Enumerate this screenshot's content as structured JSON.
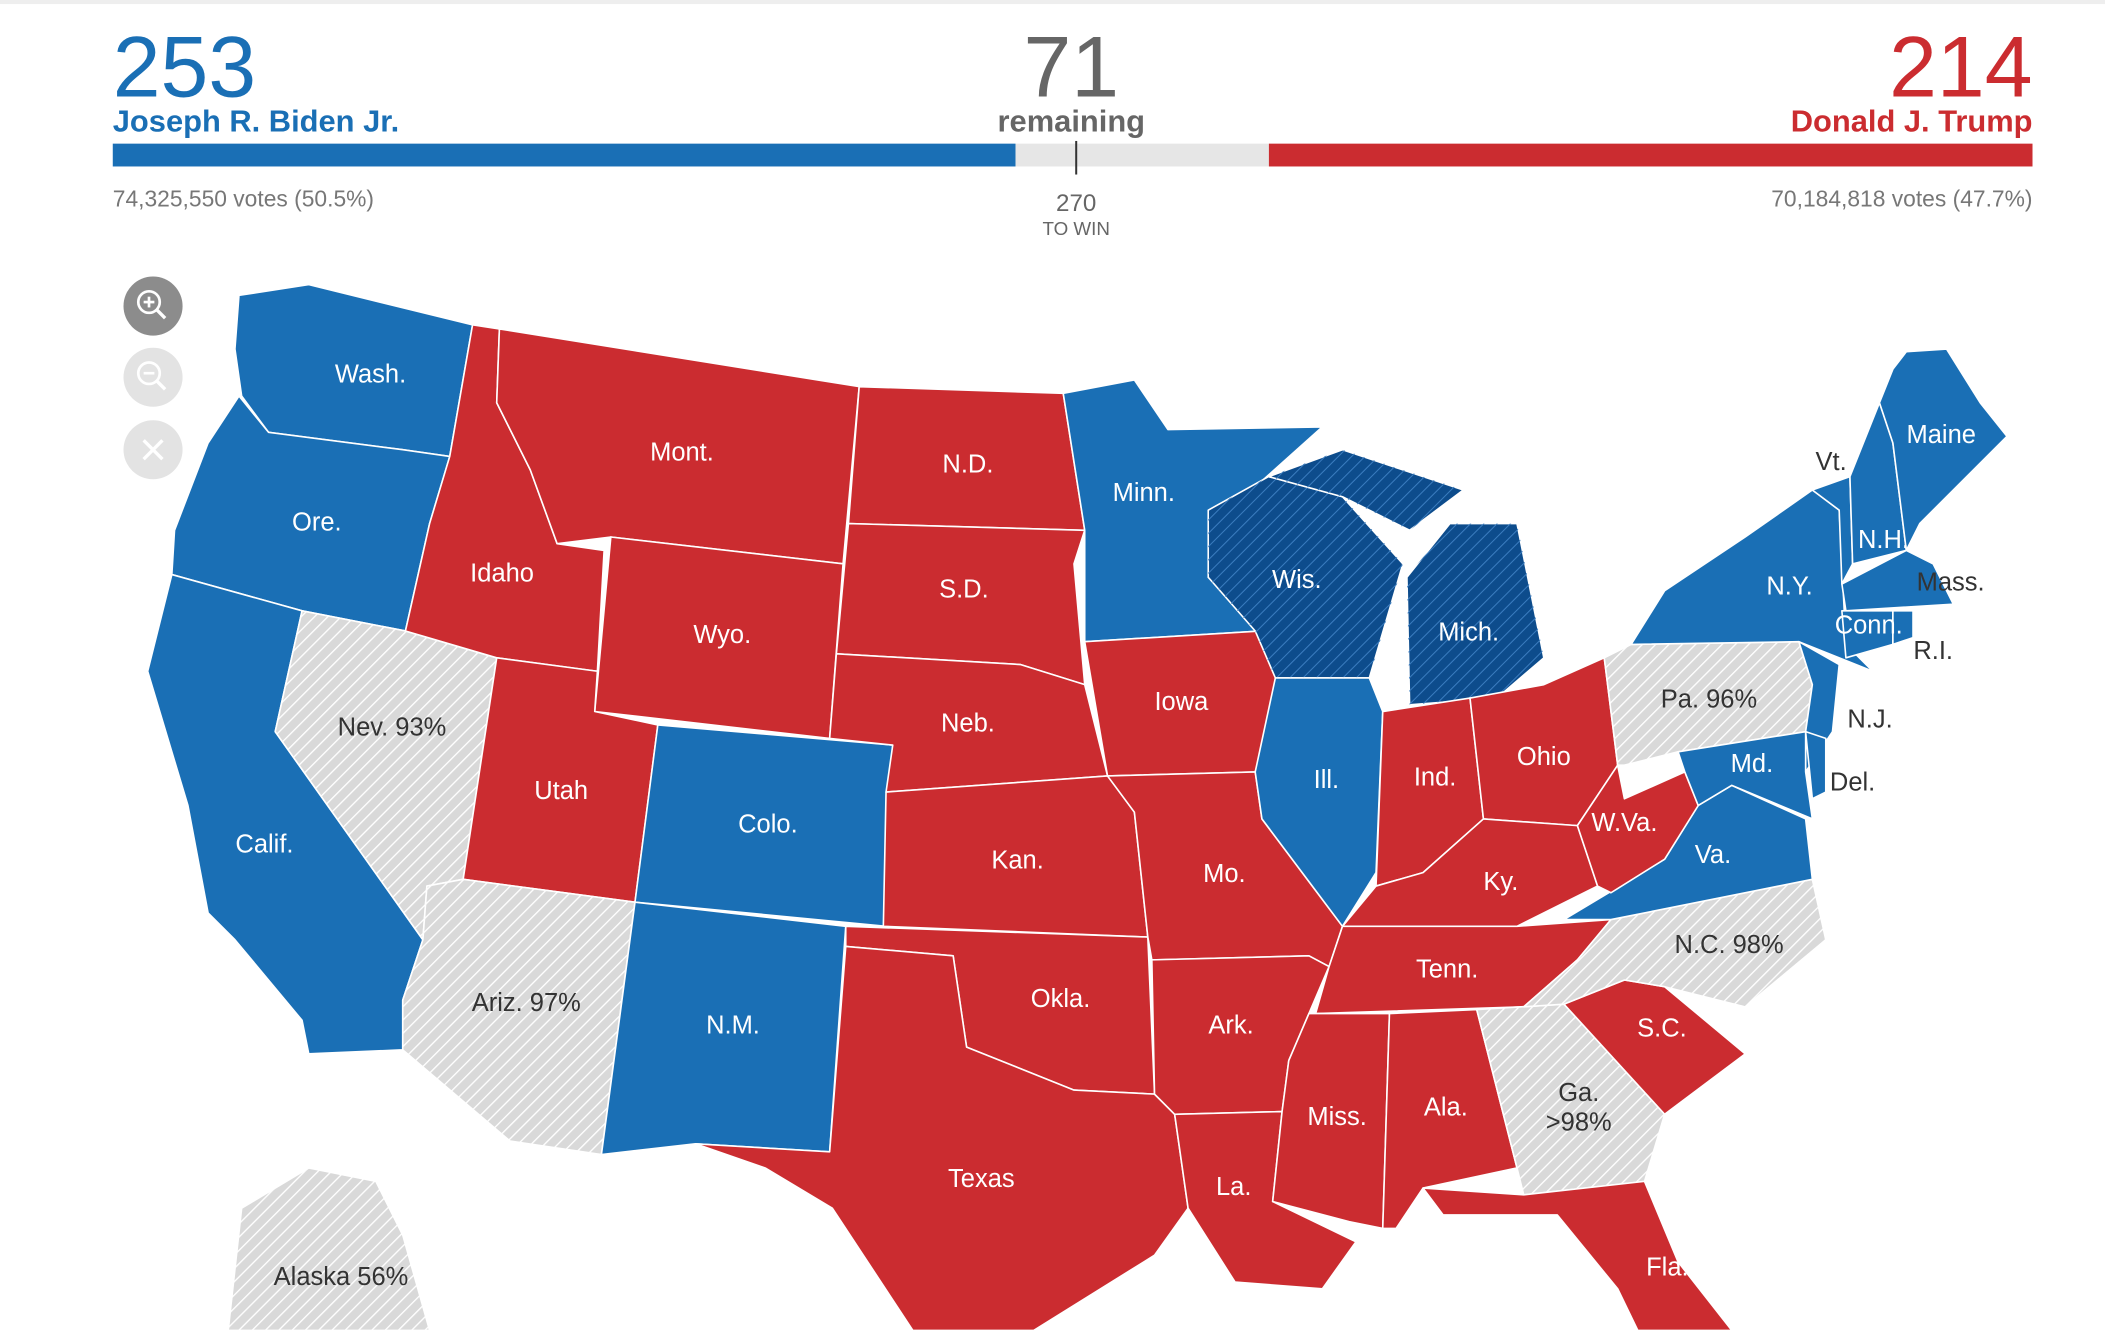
{
  "header": {
    "biden": {
      "electoral_votes": 253,
      "name": "Joseph R. Biden Jr.",
      "votes": "74,325,550 votes (50.5%)",
      "color": "#1a6fb5"
    },
    "remaining": {
      "electoral_votes": 71,
      "label": "remaining",
      "color": "#e6e6e6"
    },
    "trump": {
      "electoral_votes": 214,
      "name": "Donald J. Trump",
      "votes": "70,184,818 votes (47.7%)",
      "color": "#cb2c30"
    },
    "to_win": {
      "value": 270,
      "label": "TO WIN"
    }
  },
  "map": {
    "states": [
      {
        "label": "Wash.",
        "color": "#1a6fb5",
        "hatched": false
      },
      {
        "label": "Ore.",
        "color": "#1a6fb5",
        "hatched": false
      },
      {
        "label": "Calif.",
        "color": "#1a6fb5",
        "hatched": false
      },
      {
        "label": "Nev. 93%",
        "color": "#d9d9d9",
        "hatched": true
      },
      {
        "label": "Idaho",
        "color": "#cb2c30",
        "hatched": false
      },
      {
        "label": "Mont.",
        "color": "#cb2c30",
        "hatched": false
      },
      {
        "label": "Wyo.",
        "color": "#cb2c30",
        "hatched": false
      },
      {
        "label": "Utah",
        "color": "#cb2c30",
        "hatched": false
      },
      {
        "label": "Colo.",
        "color": "#1a6fb5",
        "hatched": false
      },
      {
        "label": "Ariz. 97%",
        "color": "#d9d9d9",
        "hatched": true
      },
      {
        "label": "N.M.",
        "color": "#1a6fb5",
        "hatched": false
      },
      {
        "label": "N.D.",
        "color": "#cb2c30",
        "hatched": false
      },
      {
        "label": "S.D.",
        "color": "#cb2c30",
        "hatched": false
      },
      {
        "label": "Neb.",
        "color": "#cb2c30",
        "hatched": false
      },
      {
        "label": "Kan.",
        "color": "#cb2c30",
        "hatched": false
      },
      {
        "label": "Okla.",
        "color": "#cb2c30",
        "hatched": false
      },
      {
        "label": "Texas",
        "color": "#cb2c30",
        "hatched": false
      },
      {
        "label": "Minn.",
        "color": "#1a6fb5",
        "hatched": false
      },
      {
        "label": "Iowa",
        "color": "#cb2c30",
        "hatched": false
      },
      {
        "label": "Mo.",
        "color": "#cb2c30",
        "hatched": false
      },
      {
        "label": "Ark.",
        "color": "#cb2c30",
        "hatched": false
      },
      {
        "label": "La.",
        "color": "#cb2c30",
        "hatched": false
      },
      {
        "label": "Wis.",
        "color": "#0d4c8c",
        "hatched": true
      },
      {
        "label": "Mich.",
        "color": "#0d4c8c",
        "hatched": true
      },
      {
        "label": "Ill.",
        "color": "#1a6fb5",
        "hatched": false
      },
      {
        "label": "Ind.",
        "color": "#cb2c30",
        "hatched": false
      },
      {
        "label": "Ohio",
        "color": "#cb2c30",
        "hatched": false
      },
      {
        "label": "Ky.",
        "color": "#cb2c30",
        "hatched": false
      },
      {
        "label": "Tenn.",
        "color": "#cb2c30",
        "hatched": false
      },
      {
        "label": "Miss.",
        "color": "#cb2c30",
        "hatched": false
      },
      {
        "label": "Ala.",
        "color": "#cb2c30",
        "hatched": false
      },
      {
        "label": "Ga.\n>98%",
        "color": "#d9d9d9",
        "hatched": true
      },
      {
        "label": "Fla.",
        "color": "#cb2c30",
        "hatched": false
      },
      {
        "label": "S.C.",
        "color": "#cb2c30",
        "hatched": false
      },
      {
        "label": "N.C. 98%",
        "color": "#d9d9d9",
        "hatched": true
      },
      {
        "label": "Va.",
        "color": "#1a6fb5",
        "hatched": false
      },
      {
        "label": "W.Va.",
        "color": "#cb2c30",
        "hatched": false
      },
      {
        "label": "Pa. 96%",
        "color": "#d9d9d9",
        "hatched": true
      },
      {
        "label": "N.Y.",
        "color": "#1a6fb5",
        "hatched": false
      },
      {
        "label": "N.J.",
        "color": "#1a6fb5",
        "hatched": false
      },
      {
        "label": "Md.",
        "color": "#1a6fb5",
        "hatched": false
      },
      {
        "label": "Del.",
        "color": "#1a6fb5",
        "hatched": false
      },
      {
        "label": "Vt.",
        "color": "#1a6fb5",
        "hatched": false
      },
      {
        "label": "N.H.",
        "color": "#1a6fb5",
        "hatched": false
      },
      {
        "label": "Maine",
        "color": "#1a6fb5",
        "hatched": false
      },
      {
        "label": "Mass.",
        "color": "#1a6fb5",
        "hatched": false
      },
      {
        "label": "Conn.",
        "color": "#1a6fb5",
        "hatched": false
      },
      {
        "label": "R.I.",
        "color": "#1a6fb5",
        "hatched": false
      },
      {
        "label": "Alaska 56%",
        "color": "#d9d9d9",
        "hatched": true
      }
    ]
  }
}
